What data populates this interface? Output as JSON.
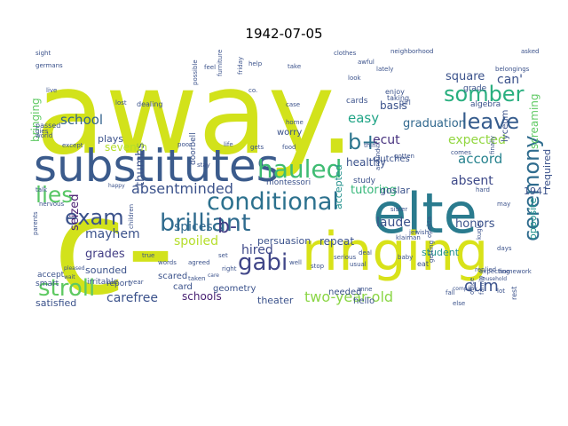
{
  "figure": {
    "title": "1942-07-05",
    "background": "#ffffff",
    "palette": [
      "#3b528b",
      "#21918c",
      "#5ec962",
      "#fde725",
      "#440154",
      "#31688e",
      "#35b779",
      "#b5de2b",
      "#d0e11c"
    ]
  },
  "words": [
    {
      "text": "away.",
      "color": "#d2e21b"
    },
    {
      "text": "c-",
      "color": "#d2e21b"
    },
    {
      "text": "elte",
      "color": "#2a7b8e"
    },
    {
      "text": "substitutes",
      "color": "#3b5b8c"
    },
    {
      "text": "ringing",
      "color": "#d8e219"
    },
    {
      "text": "conditional",
      "color": "#2c718e"
    },
    {
      "text": "brilliant",
      "color": "#2f6b8e"
    },
    {
      "text": "hauled",
      "color": "#3fbc73"
    },
    {
      "text": "somber",
      "color": "#29af7f"
    },
    {
      "text": "leave",
      "color": "#365c8d"
    },
    {
      "text": "ceremony",
      "color": "#2f6c8e"
    },
    {
      "text": "exam",
      "color": "#3b528b"
    },
    {
      "text": "lies",
      "color": "#57c665"
    },
    {
      "text": "gabi",
      "color": "#404688"
    },
    {
      "text": "stroll",
      "color": "#5ec962"
    },
    {
      "text": "b-",
      "color": "#433e85"
    },
    {
      "text": "b+",
      "color": "#2b758e"
    },
    {
      "text": "absentminded",
      "color": "#3b528b"
    },
    {
      "text": "two-year-old",
      "color": "#8bd646"
    },
    {
      "text": "cum",
      "color": "#3b528b"
    },
    {
      "text": "school",
      "color": "#33638d"
    },
    {
      "text": "expected",
      "color": "#93d741"
    },
    {
      "text": "accord",
      "color": "#26828e"
    },
    {
      "text": "absent",
      "color": "#3e4a89"
    },
    {
      "text": "easy",
      "color": "#20a486"
    },
    {
      "text": "ecut",
      "color": "#46317e"
    },
    {
      "text": "graduation",
      "color": "#31688e"
    },
    {
      "text": "tutoring",
      "color": "#35b779"
    },
    {
      "text": "honors",
      "color": "#3b528b"
    },
    {
      "text": "spices",
      "color": "#31688e"
    },
    {
      "text": "spoiled",
      "color": "#b5de2b"
    },
    {
      "text": "mayhem",
      "color": "#3b528b"
    },
    {
      "text": "grades",
      "color": "#433e85"
    },
    {
      "text": "hired",
      "color": "#3e4989"
    },
    {
      "text": "carefree",
      "color": "#3b528b"
    },
    {
      "text": "schools",
      "color": "#482173"
    },
    {
      "text": "laude",
      "color": "#3b528b"
    },
    {
      "text": "repeat",
      "color": "#3b528b"
    },
    {
      "text": "healthy",
      "color": "#3b528b"
    },
    {
      "text": "thumbs",
      "color": "#3b528b"
    },
    {
      "text": "accepted",
      "color": "#21918c"
    },
    {
      "text": "square",
      "color": "#3b528b"
    },
    {
      "text": "can'",
      "color": "#3b528b"
    },
    {
      "text": "screaming",
      "color": "#5ec962"
    },
    {
      "text": "required",
      "color": "#3b528b"
    },
    {
      "text": "opposite",
      "color": "#21918c"
    },
    {
      "text": "seized",
      "color": "#481f70"
    },
    {
      "text": "seventh",
      "color": "#b5de2b"
    },
    {
      "text": "persuasion",
      "color": "#3b528b"
    },
    {
      "text": "basis",
      "color": "#3b528b"
    },
    {
      "text": "student",
      "color": "#21918c"
    },
    {
      "text": "goslar",
      "color": "#3b528b"
    },
    {
      "text": "1941",
      "color": "#3b528b"
    },
    {
      "text": "theater",
      "color": "#3b528b"
    },
    {
      "text": "needed",
      "color": "#3b528b"
    },
    {
      "text": "hello",
      "color": "#3b528b"
    },
    {
      "text": "satisfied",
      "color": "#3b528b"
    },
    {
      "text": "sounded",
      "color": "#3b528b"
    },
    {
      "text": "plays",
      "color": "#3b528b"
    },
    {
      "text": "bringing",
      "color": "#5ec962"
    },
    {
      "text": "clutches",
      "color": "#3b528b"
    },
    {
      "text": "geometry",
      "color": "#3b528b"
    },
    {
      "text": "scared",
      "color": "#3b528b"
    },
    {
      "text": "card",
      "color": "#3b528b"
    },
    {
      "text": "worry",
      "color": "#3b528b"
    },
    {
      "text": "study",
      "color": "#3b528b"
    },
    {
      "text": "cards",
      "color": "#3b528b"
    },
    {
      "text": "grade",
      "color": "#3b528b"
    },
    {
      "text": "algebra",
      "color": "#3b528b"
    },
    {
      "text": "lyceum",
      "color": "#3b528b"
    },
    {
      "text": "irritable",
      "color": "#3b528b"
    },
    {
      "text": "montessori",
      "color": "#3b528b"
    },
    {
      "text": "doorbell",
      "color": "#3b528b"
    },
    {
      "text": "smart",
      "color": "#3b528b"
    },
    {
      "text": "accept",
      "color": "#3b528b"
    },
    {
      "text": "passed",
      "color": "#3b528b"
    },
    {
      "text": "report",
      "color": "#3b528b"
    },
    {
      "text": "enjoy",
      "color": "#3b528b"
    },
    {
      "text": "taking",
      "color": "#3b528b"
    },
    {
      "text": "girl",
      "color": "#3b528b"
    },
    {
      "text": "eat",
      "color": "#3b528b"
    },
    {
      "text": "dealing",
      "color": "#3b528b"
    },
    {
      "text": "furniture",
      "color": "#3b528b"
    },
    {
      "text": "baby",
      "color": "#3b528b"
    },
    {
      "text": "clothes",
      "color": "#3b528b"
    },
    {
      "text": "neighborhood",
      "color": "#3b528b"
    },
    {
      "text": "asked",
      "color": "#3b528b"
    },
    {
      "text": "belongings",
      "color": "#3b528b"
    },
    {
      "text": "germans",
      "color": "#3b528b"
    },
    {
      "text": "sight",
      "color": "#3b528b"
    },
    {
      "text": "awful",
      "color": "#3b528b"
    },
    {
      "text": "lately",
      "color": "#3b528b"
    },
    {
      "text": "help",
      "color": "#3b528b"
    },
    {
      "text": "take",
      "color": "#3b528b"
    },
    {
      "text": "live",
      "color": "#3b528b"
    },
    {
      "text": "lost",
      "color": "#3b528b"
    },
    {
      "text": "co.",
      "color": "#3b528b"
    },
    {
      "text": "look",
      "color": "#3b528b"
    },
    {
      "text": "home",
      "color": "#3b528b"
    },
    {
      "text": "case",
      "color": "#3b528b"
    },
    {
      "text": "poor",
      "color": "#3b528b"
    },
    {
      "text": "life",
      "color": "#3b528b"
    },
    {
      "text": "gets",
      "color": "#3b528b"
    },
    {
      "text": "food",
      "color": "#3b528b"
    },
    {
      "text": "except",
      "color": "#3b528b"
    },
    {
      "text": "world",
      "color": "#3b528b"
    },
    {
      "text": "stay",
      "color": "#3b528b"
    },
    {
      "text": "happy",
      "color": "#3b528b"
    },
    {
      "text": "talk",
      "color": "#3b528b"
    },
    {
      "text": "parents",
      "color": "#3b528b"
    },
    {
      "text": "nervous",
      "color": "#3b528b"
    },
    {
      "text": "wait",
      "color": "#3b528b"
    },
    {
      "text": "pleased",
      "color": "#3b528b"
    },
    {
      "text": "year",
      "color": "#3b528b"
    },
    {
      "text": "true",
      "color": "#3b528b"
    },
    {
      "text": "words",
      "color": "#3b528b"
    },
    {
      "text": "agreed",
      "color": "#3b528b"
    },
    {
      "text": "set",
      "color": "#3b528b"
    },
    {
      "text": "taken",
      "color": "#3b528b"
    },
    {
      "text": "right",
      "color": "#3b528b"
    },
    {
      "text": "care",
      "color": "#3b528b"
    },
    {
      "text": "well",
      "color": "#3b528b"
    },
    {
      "text": "stop",
      "color": "#3b528b"
    },
    {
      "text": "serious",
      "color": "#3b528b"
    },
    {
      "text": "usual",
      "color": "#3b528b"
    },
    {
      "text": "deal",
      "color": "#3b528b"
    },
    {
      "text": "jewish",
      "color": "#3b528b"
    },
    {
      "text": "klaiman",
      "color": "#3b528b"
    },
    {
      "text": "opekta",
      "color": "#3b528b"
    },
    {
      "text": "expecting",
      "color": "#3b528b"
    },
    {
      "text": "kugler",
      "color": "#3b528b"
    },
    {
      "text": "office",
      "color": "#3b528b"
    },
    {
      "text": "family",
      "color": "#3b528b"
    },
    {
      "text": "fall",
      "color": "#3b528b"
    },
    {
      "text": "else",
      "color": "#3b528b"
    },
    {
      "text": "lot",
      "color": "#3b528b"
    },
    {
      "text": "rest",
      "color": "#3b528b"
    },
    {
      "text": "homework",
      "color": "#3b528b"
    },
    {
      "text": "days",
      "color": "#3b528b"
    },
    {
      "text": "sister",
      "color": "#3b528b"
    },
    {
      "text": "replied",
      "color": "#3b528b"
    },
    {
      "text": "hard",
      "color": "#3b528b"
    },
    {
      "text": "gotten",
      "color": "#3b528b"
    },
    {
      "text": "comes",
      "color": "#3b528b"
    },
    {
      "text": "finally",
      "color": "#3b528b"
    },
    {
      "text": "household",
      "color": "#3b528b"
    },
    {
      "text": "company",
      "color": "#3b528b"
    },
    {
      "text": "thing",
      "color": "#3b528b"
    },
    {
      "text": "around",
      "color": "#3b528b"
    },
    {
      "text": "possible",
      "color": "#3b528b"
    },
    {
      "text": "friday",
      "color": "#3b528b"
    },
    {
      "text": "feel",
      "color": "#3b528b"
    },
    {
      "text": "gies",
      "color": "#3b528b"
    },
    {
      "text": "anne",
      "color": "#3b528b"
    },
    {
      "text": "may",
      "color": "#3b528b"
    },
    {
      "text": "getting",
      "color": "#3b528b"
    },
    {
      "text": "children",
      "color": "#3b528b"
    }
  ]
}
